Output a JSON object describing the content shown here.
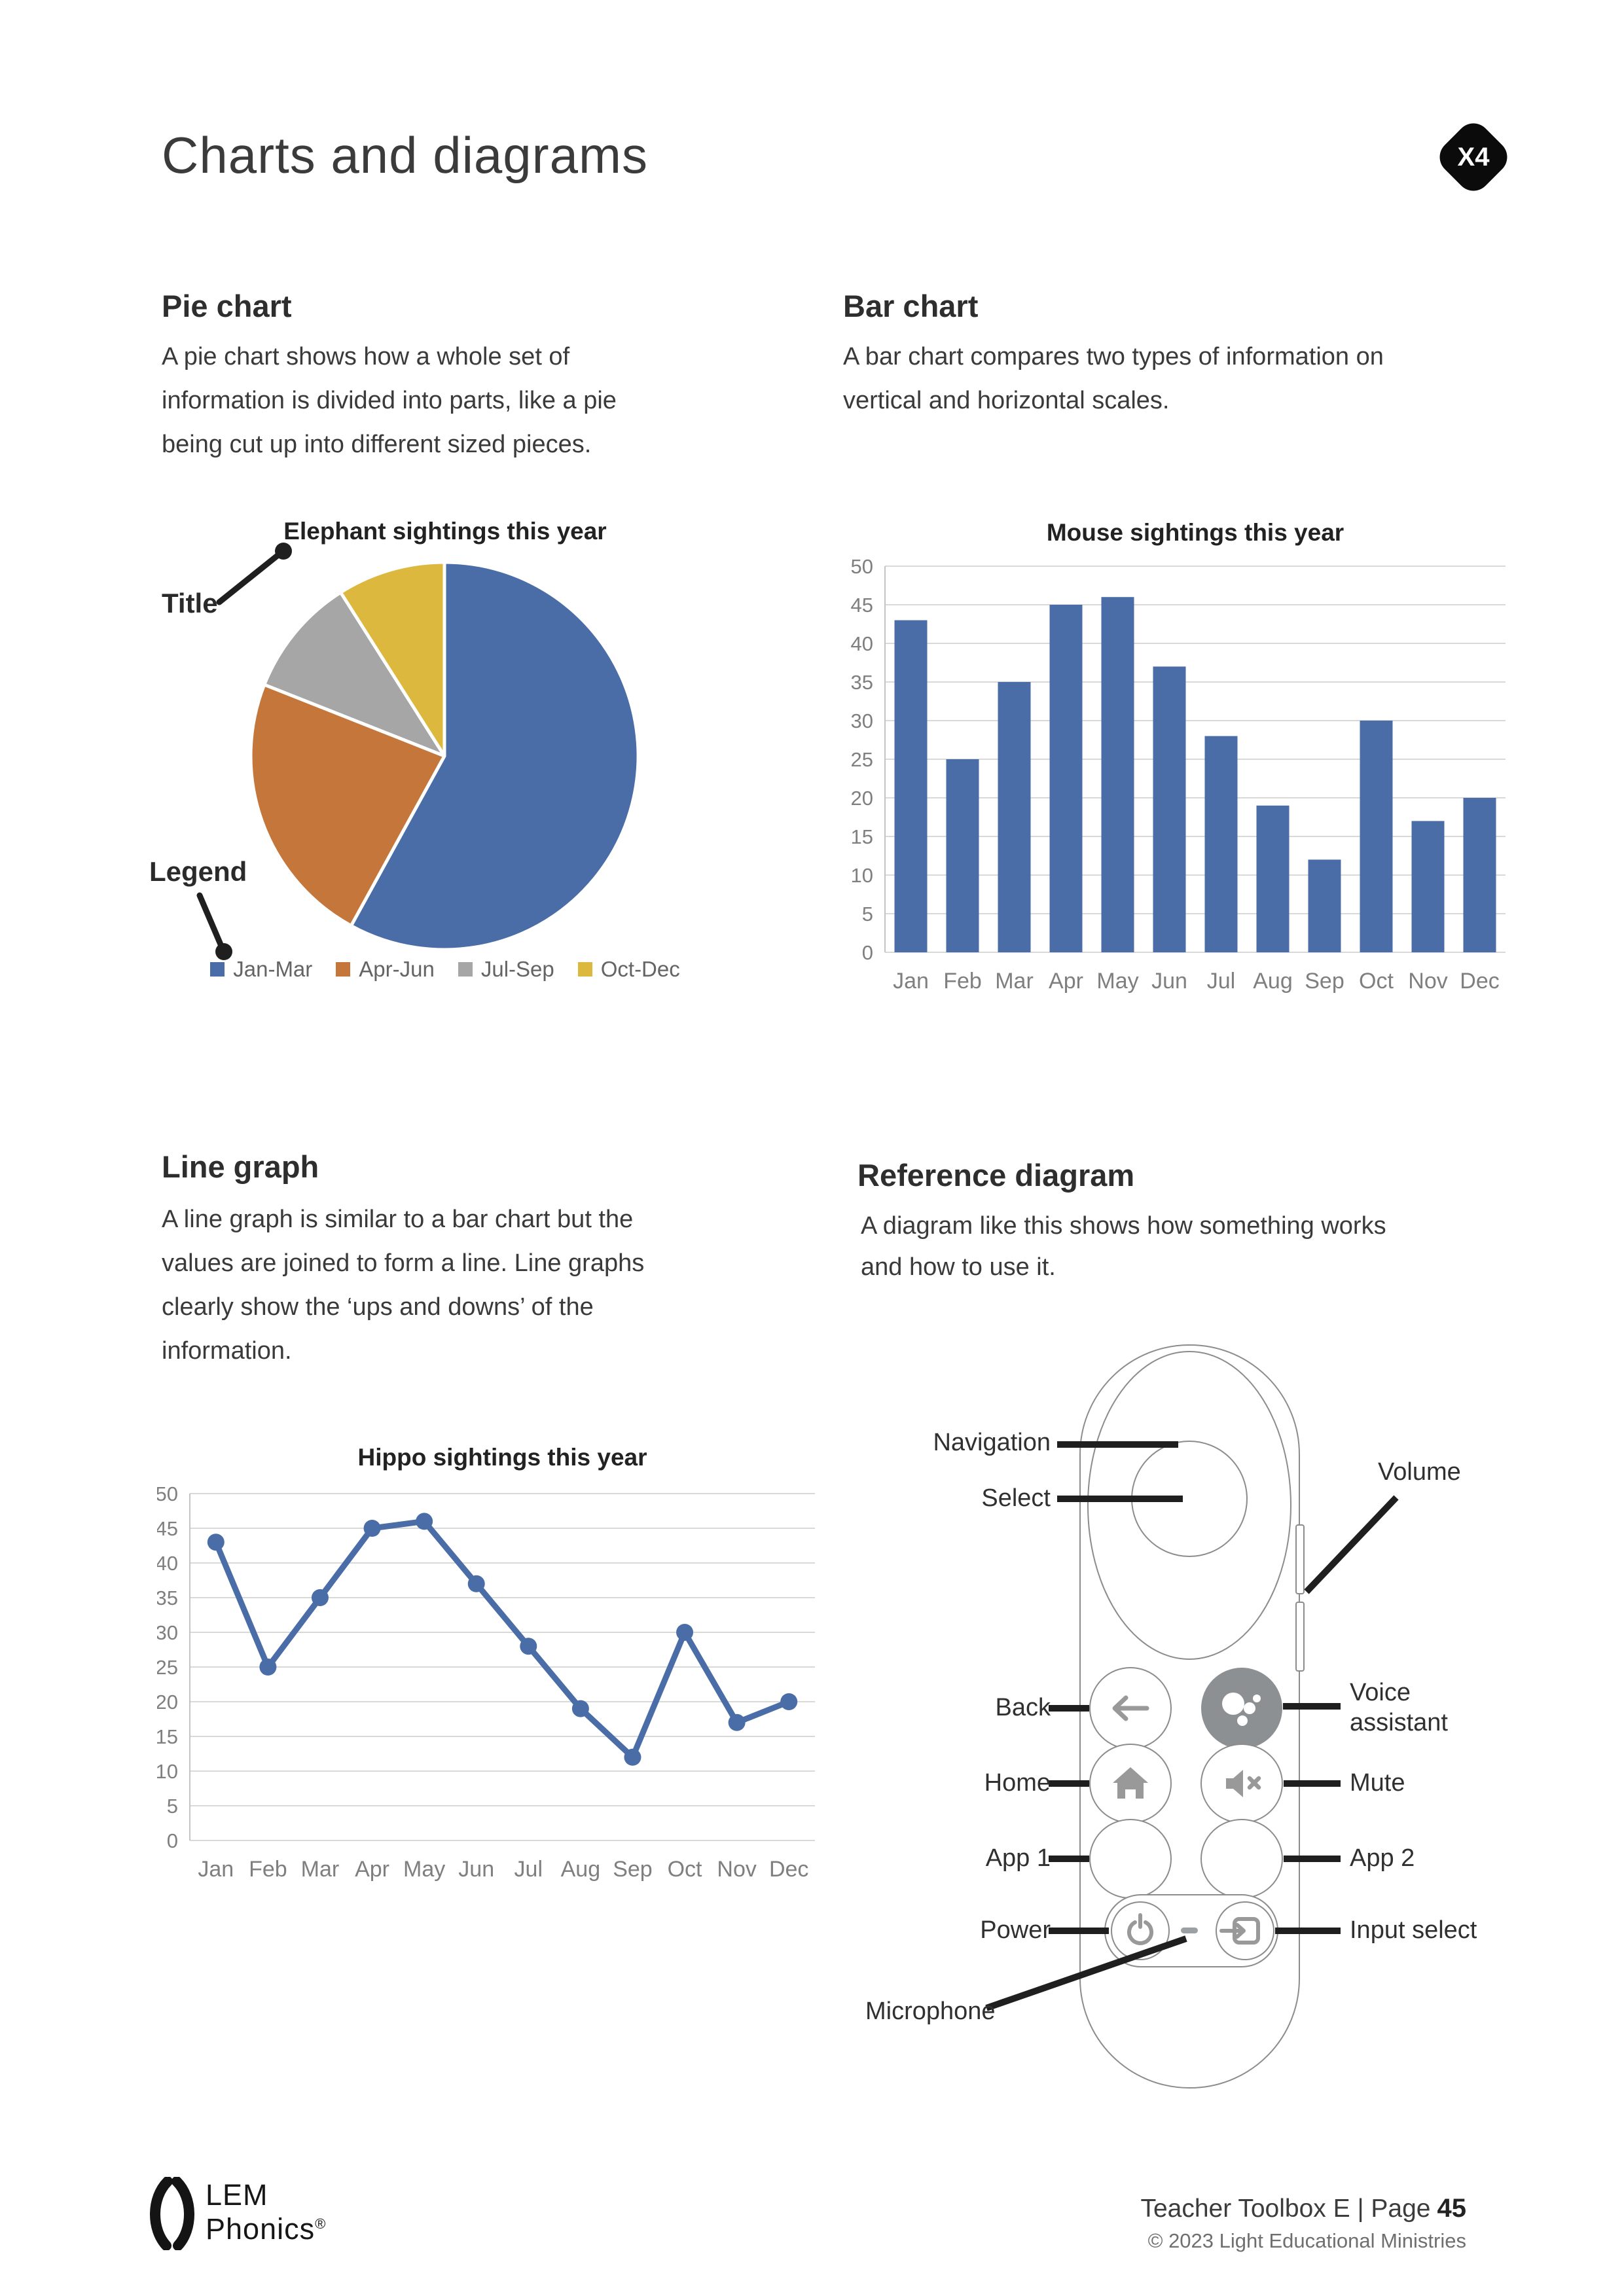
{
  "page": {
    "title": "Charts and diagrams",
    "badge": "X4"
  },
  "sections": {
    "pie": {
      "heading": "Pie chart",
      "body_lines": [
        "A pie chart shows how a whole set of",
        "information is divided into parts, like a pie",
        "being cut up into different sized pieces."
      ]
    },
    "bar": {
      "heading": "Bar chart",
      "body_lines": [
        "A bar chart compares two types of information on",
        "vertical and horizontal scales."
      ]
    },
    "line": {
      "heading": "Line graph",
      "body_lines": [
        "A line graph is similar to a bar chart but the",
        "values are joined to form a line. Line graphs",
        "clearly show the ‘ups and downs’ of the",
        "information."
      ]
    },
    "reference": {
      "heading": "Reference diagram",
      "body_lines": [
        "A diagram like this shows how something works",
        "and how to use it."
      ],
      "labels": {
        "navigation": "Navigation",
        "select": "Select",
        "volume": "Volume",
        "back": "Back",
        "voice_assistant": "Voice assistant",
        "home": "Home",
        "mute": "Mute",
        "app1": "App 1",
        "app2": "App 2",
        "power": "Power",
        "input_select": "Input select",
        "microphone": "Microphone"
      }
    }
  },
  "chart_data": [
    {
      "type": "pie",
      "title": "Elephant sightings this year",
      "categories": [
        "Jan-Mar",
        "Apr-Jun",
        "Jul-Sep",
        "Oct-Dec"
      ],
      "values": [
        58,
        23,
        10,
        9
      ],
      "unit": "percent (estimated from slice angles)",
      "colors": [
        "#4a6da7",
        "#c4763b",
        "#a6a6a6",
        "#ddb83e"
      ],
      "legend_position": "bottom",
      "annotations": {
        "title_label": "Title",
        "legend_label": "Legend"
      }
    },
    {
      "type": "bar",
      "title": "Mouse sightings this year",
      "categories": [
        "Jan",
        "Feb",
        "Mar",
        "Apr",
        "May",
        "Jun",
        "Jul",
        "Aug",
        "Sep",
        "Oct",
        "Nov",
        "Dec"
      ],
      "values": [
        43,
        25,
        35,
        45,
        46,
        37,
        28,
        19,
        12,
        30,
        17,
        20
      ],
      "xlabel": "",
      "ylabel": "",
      "ylim": [
        0,
        50
      ],
      "ytick_step": 5,
      "grid": true,
      "color": "#4a6da7"
    },
    {
      "type": "line",
      "title": "Hippo sightings this year",
      "categories": [
        "Jan",
        "Feb",
        "Mar",
        "Apr",
        "May",
        "Jun",
        "Jul",
        "Aug",
        "Sep",
        "Oct",
        "Nov",
        "Dec"
      ],
      "values": [
        43,
        25,
        35,
        45,
        46,
        37,
        28,
        19,
        12,
        30,
        17,
        20
      ],
      "xlabel": "",
      "ylabel": "",
      "ylim": [
        0,
        50
      ],
      "ytick_step": 5,
      "grid": true,
      "color": "#4a6da7"
    }
  ],
  "footer": {
    "logo_line1": "LEM",
    "logo_line2": "Phonics",
    "logo_reg": "®",
    "page_label": "Teacher Toolbox E | Page",
    "page_number": "45",
    "copyright": "© 2023 Light Educational Ministries"
  }
}
